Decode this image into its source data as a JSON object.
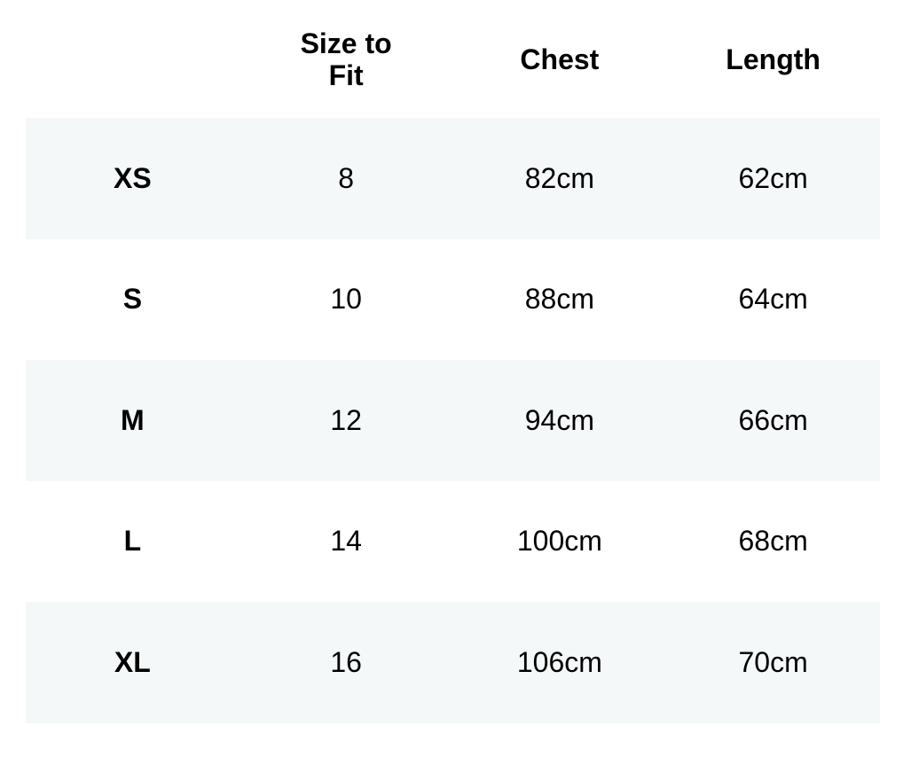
{
  "table": {
    "headers": [
      "",
      "Size to Fit",
      "Chest",
      "Length"
    ],
    "rows": [
      [
        "XS",
        "8",
        "82cm",
        "62cm"
      ],
      [
        "S",
        "10",
        "88cm",
        "64cm"
      ],
      [
        "M",
        "12",
        "94cm",
        "66cm"
      ],
      [
        "L",
        "14",
        "100cm",
        "68cm"
      ],
      [
        "XL",
        "16",
        "106cm",
        "70cm"
      ]
    ]
  },
  "colors": {
    "stripe": "#f5f8f9",
    "text": "#000000"
  }
}
